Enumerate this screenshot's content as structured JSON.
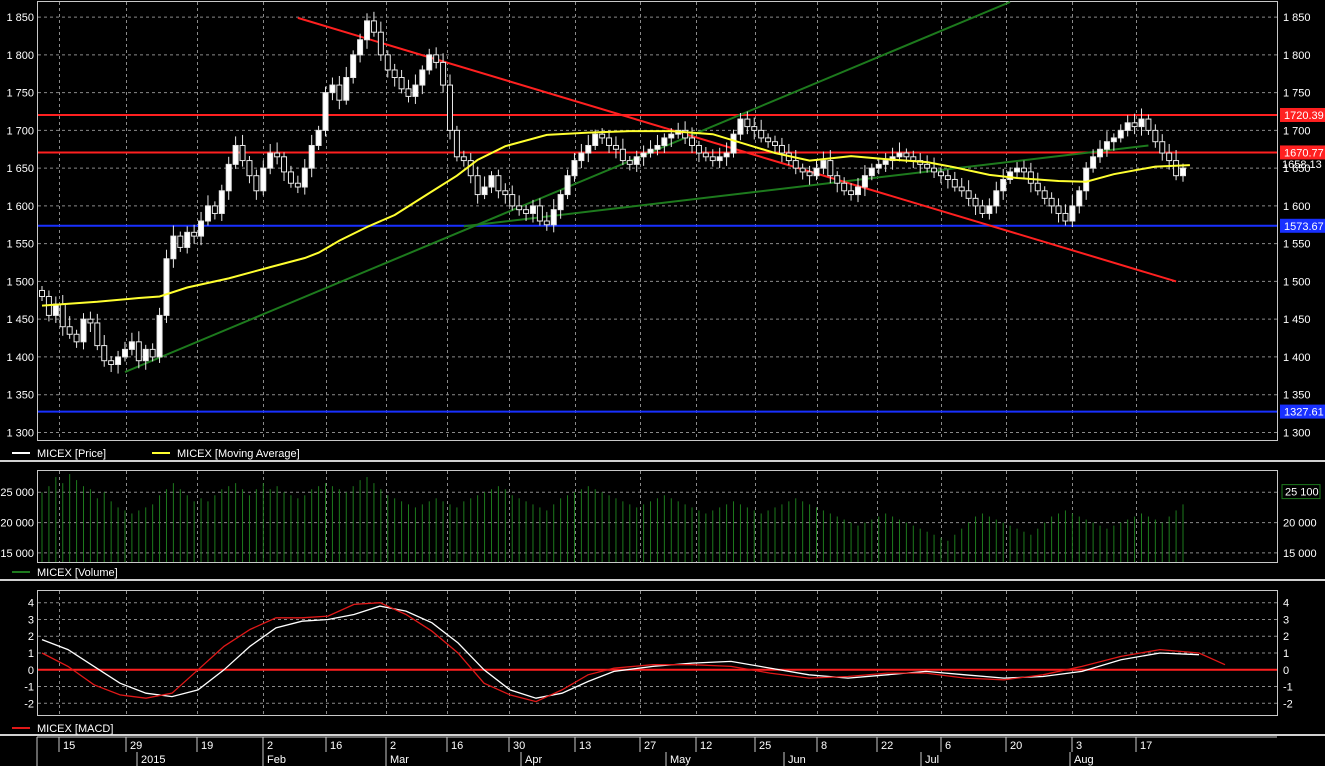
{
  "chart_data": [
    {
      "type": "candlestick",
      "id": "price",
      "ylim": [
        1290,
        1870
      ],
      "y_ticks": [
        1300,
        1350,
        1400,
        1450,
        1500,
        1550,
        1600,
        1650,
        1700,
        1750,
        1800,
        1850
      ],
      "y_tick_labels": [
        "1 300",
        "1 350",
        "1 400",
        "1 450",
        "1 500",
        "1 550",
        "1 600",
        "1 650",
        "1 700",
        "1 750",
        "1 800",
        "1 850"
      ],
      "x_index_range": [
        0,
        168
      ],
      "series_close": [
        1480,
        1455,
        1470,
        1440,
        1430,
        1420,
        1450,
        1445,
        1415,
        1395,
        1390,
        1400,
        1410,
        1420,
        1395,
        1410,
        1400,
        1455,
        1530,
        1560,
        1545,
        1565,
        1560,
        1580,
        1600,
        1590,
        1620,
        1655,
        1680,
        1660,
        1640,
        1620,
        1650,
        1670,
        1665,
        1645,
        1630,
        1625,
        1650,
        1680,
        1700,
        1750,
        1760,
        1740,
        1770,
        1800,
        1820,
        1845,
        1830,
        1800,
        1780,
        1770,
        1755,
        1745,
        1760,
        1780,
        1800,
        1790,
        1760,
        1700,
        1665,
        1660,
        1640,
        1615,
        1625,
        1640,
        1620,
        1615,
        1600,
        1595,
        1590,
        1600,
        1580,
        1575,
        1595,
        1615,
        1640,
        1660,
        1670,
        1680,
        1695,
        1690,
        1680,
        1675,
        1660,
        1655,
        1665,
        1670,
        1675,
        1680,
        1690,
        1695,
        1700,
        1690,
        1680,
        1670,
        1665,
        1660,
        1665,
        1670,
        1695,
        1715,
        1705,
        1700,
        1690,
        1685,
        1680,
        1670,
        1660,
        1650,
        1645,
        1640,
        1650,
        1660,
        1640,
        1630,
        1620,
        1615,
        1625,
        1640,
        1650,
        1655,
        1660,
        1665,
        1670,
        1665,
        1660,
        1655,
        1650,
        1645,
        1640,
        1635,
        1625,
        1620,
        1610,
        1600,
        1590,
        1600,
        1620,
        1635,
        1645,
        1650,
        1645,
        1630,
        1620,
        1610,
        1600,
        1590,
        1580,
        1600,
        1620,
        1650,
        1665,
        1675,
        1685,
        1690,
        1700,
        1710,
        1705,
        1715,
        1700,
        1685,
        1670,
        1660,
        1640,
        1650
      ],
      "moving_average": [
        [
          0,
          1468
        ],
        [
          8,
          1473
        ],
        [
          14,
          1478
        ],
        [
          17,
          1480
        ],
        [
          21,
          1492
        ],
        [
          27,
          1504
        ],
        [
          33,
          1519
        ],
        [
          38,
          1531
        ],
        [
          40,
          1538
        ],
        [
          43,
          1554
        ],
        [
          47,
          1572
        ],
        [
          51,
          1588
        ],
        [
          56,
          1617
        ],
        [
          60,
          1640
        ],
        [
          63,
          1661
        ],
        [
          67,
          1679
        ],
        [
          73,
          1694
        ],
        [
          79,
          1697
        ],
        [
          85,
          1699
        ],
        [
          91,
          1699
        ],
        [
          97,
          1695
        ],
        [
          102,
          1681
        ],
        [
          106,
          1670
        ],
        [
          111,
          1660
        ],
        [
          117,
          1666
        ],
        [
          122,
          1662
        ],
        [
          128,
          1658
        ],
        [
          132,
          1651
        ],
        [
          137,
          1641
        ],
        [
          141,
          1637
        ],
        [
          147,
          1633
        ],
        [
          151,
          1632
        ],
        [
          155,
          1642
        ],
        [
          161,
          1652
        ],
        [
          166,
          1654
        ]
      ],
      "hlines": [
        {
          "value": 1720.39,
          "label": "1720.39",
          "color": "#ff2020"
        },
        {
          "value": 1670.77,
          "label": "1670.77",
          "color": "#ff2020"
        },
        {
          "value": 1573.67,
          "label": "1573.67",
          "color": "#1830ff"
        },
        {
          "value": 1327.61,
          "label": "1327.61",
          "color": "#1830ff"
        }
      ],
      "last_price_label": "1658.13",
      "trendlines": [
        {
          "from": [
            12,
            1380
          ],
          "to": [
            140,
            1870
          ],
          "color": "#1d7a1d"
        },
        {
          "from": [
            61,
            1573
          ],
          "to": [
            160,
            1680
          ],
          "color": "#1d7a1d"
        },
        {
          "from": [
            37,
            1849
          ],
          "to": [
            164,
            1500
          ],
          "color": "#ff2020"
        }
      ],
      "legend": [
        {
          "label": "MICEX [Price]",
          "color": "#ffffff"
        },
        {
          "label": "MICEX [Moving Average]",
          "color": "#ffff30"
        }
      ]
    },
    {
      "type": "bar",
      "id": "volume",
      "ylim": [
        13500,
        28500
      ],
      "y_ticks": [
        15000,
        20000,
        25000
      ],
      "y_tick_labels": [
        "15 000",
        "20 000",
        "25 000"
      ],
      "last_value_label": "25 100",
      "color": "#1d7a1d",
      "values": [
        25000,
        26000,
        27500,
        26500,
        28000,
        27000,
        26000,
        25500,
        24000,
        25000,
        23500,
        22500,
        22000,
        21500,
        22000,
        22500,
        23000,
        24500,
        25500,
        26500,
        25500,
        24500,
        23500,
        24000,
        23500,
        24500,
        25500,
        26000,
        26500,
        25500,
        24500,
        25500,
        26500,
        25500,
        26000,
        25000,
        24500,
        24000,
        24500,
        25500,
        26000,
        26500,
        26000,
        25500,
        25000,
        26000,
        27000,
        27500,
        26500,
        25500,
        24500,
        24000,
        23500,
        23000,
        22500,
        23000,
        23500,
        24000,
        23500,
        23000,
        22500,
        23500,
        24000,
        24500,
        25000,
        25500,
        26000,
        25500,
        24500,
        24000,
        23500,
        23000,
        22500,
        22000,
        23000,
        24000,
        24500,
        25000,
        25500,
        26000,
        25500,
        25000,
        24500,
        24000,
        23500,
        23000,
        22500,
        23000,
        23500,
        24000,
        24500,
        24000,
        23500,
        23000,
        22500,
        22000,
        21500,
        22000,
        22500,
        23000,
        23500,
        23000,
        22500,
        22000,
        21500,
        22000,
        22500,
        23000,
        23500,
        24000,
        23500,
        23000,
        22500,
        22000,
        21500,
        21000,
        20500,
        20000,
        19500,
        20000,
        20500,
        21000,
        21500,
        21000,
        20500,
        20000,
        19500,
        19000,
        18500,
        18000,
        17500,
        17000,
        18000,
        19000,
        20000,
        21000,
        21500,
        21000,
        20500,
        20000,
        19500,
        19000,
        18500,
        18000,
        19000,
        20000,
        21000,
        21500,
        22000,
        21500,
        21000,
        20500,
        20000,
        19500,
        19000,
        19500,
        20000,
        20500,
        21000,
        21500,
        21000,
        20500,
        20000,
        21000,
        22000,
        23000,
        25100,
        25100
      ],
      "legend": [
        {
          "label": "MICEX [Volume]",
          "color": "#1d7a1d"
        }
      ]
    },
    {
      "type": "line",
      "id": "macd",
      "ylim": [
        -2.7,
        4.7
      ],
      "y_ticks": [
        -2,
        -1,
        0,
        1,
        2,
        3,
        4
      ],
      "y_tick_labels": [
        "-2",
        "-1",
        "0",
        "1",
        "2",
        "3",
        "4"
      ],
      "zero_line_color": "#ff2020",
      "series": [
        {
          "name": "",
          "color": "#ffffff",
          "points": [
            [
              0,
              1.8
            ],
            [
              4,
              1.2
            ],
            [
              8,
              0.2
            ],
            [
              12,
              -0.8
            ],
            [
              16,
              -1.4
            ],
            [
              20,
              -1.6
            ],
            [
              24,
              -1.2
            ],
            [
              28,
              0
            ],
            [
              32,
              1.4
            ],
            [
              36,
              2.5
            ],
            [
              40,
              2.9
            ],
            [
              44,
              3.0
            ],
            [
              48,
              3.3
            ],
            [
              52,
              3.8
            ],
            [
              56,
              3.5
            ],
            [
              60,
              2.8
            ],
            [
              64,
              1.6
            ],
            [
              68,
              0
            ],
            [
              72,
              -1.2
            ],
            [
              76,
              -1.7
            ],
            [
              80,
              -1.4
            ],
            [
              84,
              -0.7
            ],
            [
              88,
              -0.1
            ],
            [
              94,
              0.2
            ],
            [
              100,
              0.4
            ],
            [
              106,
              0.5
            ],
            [
              112,
              0.1
            ],
            [
              118,
              -0.3
            ],
            [
              124,
              -0.5
            ],
            [
              130,
              -0.3
            ],
            [
              136,
              -0.1
            ],
            [
              142,
              -0.3
            ],
            [
              148,
              -0.5
            ],
            [
              154,
              -0.4
            ],
            [
              160,
              -0.1
            ],
            [
              166,
              0.6
            ],
            [
              172,
              1.0
            ],
            [
              178,
              0.9
            ]
          ]
        },
        {
          "name": "",
          "color": "#e01818",
          "points": [
            [
              0,
              1.0
            ],
            [
              4,
              0.2
            ],
            [
              8,
              -0.9
            ],
            [
              12,
              -1.5
            ],
            [
              16,
              -1.7
            ],
            [
              20,
              -1.4
            ],
            [
              24,
              0
            ],
            [
              28,
              1.4
            ],
            [
              32,
              2.4
            ],
            [
              36,
              3.1
            ],
            [
              40,
              3.1
            ],
            [
              44,
              3.2
            ],
            [
              48,
              3.9
            ],
            [
              52,
              4.0
            ],
            [
              56,
              3.3
            ],
            [
              60,
              2.3
            ],
            [
              64,
              1.0
            ],
            [
              68,
              -0.8
            ],
            [
              72,
              -1.5
            ],
            [
              76,
              -1.9
            ],
            [
              80,
              -1.2
            ],
            [
              84,
              -0.3
            ],
            [
              88,
              0.1
            ],
            [
              94,
              0.3
            ],
            [
              100,
              0.3
            ],
            [
              106,
              0.2
            ],
            [
              112,
              -0.2
            ],
            [
              118,
              -0.5
            ],
            [
              124,
              -0.4
            ],
            [
              130,
              -0.2
            ],
            [
              136,
              -0.2
            ],
            [
              142,
              -0.5
            ],
            [
              148,
              -0.6
            ],
            [
              154,
              -0.3
            ],
            [
              160,
              0.2
            ],
            [
              166,
              0.8
            ],
            [
              172,
              1.2
            ],
            [
              178,
              1.0
            ],
            [
              182,
              0.3
            ]
          ]
        }
      ],
      "legend": [
        {
          "label": "MICEX [MACD]",
          "color": "#e01818"
        }
      ]
    }
  ],
  "x_axis": {
    "day_ticks": [
      {
        "label": "15",
        "x": 59
      },
      {
        "label": "29",
        "x": 126
      },
      {
        "label": "19",
        "x": 197
      },
      {
        "label": "2",
        "x": 263
      },
      {
        "label": "16",
        "x": 326
      },
      {
        "label": "2",
        "x": 386
      },
      {
        "label": "16",
        "x": 447
      },
      {
        "label": "30",
        "x": 509
      },
      {
        "label": "13",
        "x": 575
      },
      {
        "label": "27",
        "x": 640
      },
      {
        "label": "12",
        "x": 696
      },
      {
        "label": "25",
        "x": 755
      },
      {
        "label": "8",
        "x": 817
      },
      {
        "label": "22",
        "x": 877
      },
      {
        "label": "6",
        "x": 941
      },
      {
        "label": "20",
        "x": 1006
      },
      {
        "label": "3",
        "x": 1072
      },
      {
        "label": "17",
        "x": 1136
      }
    ],
    "month_ticks": [
      {
        "label": "2015",
        "x": 137
      },
      {
        "label": "Feb",
        "x": 263
      },
      {
        "label": "Mar",
        "x": 386
      },
      {
        "label": "Apr",
        "x": 521
      },
      {
        "label": "May",
        "x": 666
      },
      {
        "label": "Jun",
        "x": 784
      },
      {
        "label": "Jul",
        "x": 921
      },
      {
        "label": "Aug",
        "x": 1070
      }
    ]
  }
}
